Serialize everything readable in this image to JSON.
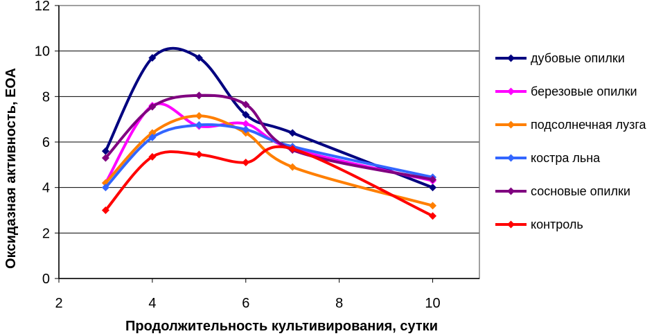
{
  "chart_data": {
    "type": "line",
    "title": "",
    "xlabel": "Продолжительность культивирования, сутки",
    "ylabel": "Оксидазная активность, ЕОА",
    "xlim": [
      2,
      11
    ],
    "ylim": [
      0,
      12
    ],
    "xticks": [
      "2",
      "4",
      "6",
      "8",
      "10"
    ],
    "yticks": [
      "0",
      "2",
      "4",
      "6",
      "8",
      "10",
      "12"
    ],
    "x": [
      3,
      4,
      5,
      6,
      7,
      10
    ],
    "grid": "horizontal",
    "legend_position": "right",
    "series": [
      {
        "name": "дубовые опилки",
        "color": "#000080",
        "values": [
          5.6,
          9.7,
          9.7,
          7.2,
          6.4,
          4.0
        ]
      },
      {
        "name": "березовые опилки",
        "color": "#ff00ff",
        "values": [
          4.2,
          7.6,
          6.7,
          6.8,
          5.7,
          4.3
        ]
      },
      {
        "name": "подсолнечная лузга",
        "color": "#ff7f00",
        "values": [
          4.2,
          6.4,
          7.15,
          6.4,
          4.9,
          3.2
        ]
      },
      {
        "name": "костра льна",
        "color": "#3366ff",
        "values": [
          4.0,
          6.2,
          6.75,
          6.55,
          5.8,
          4.45
        ]
      },
      {
        "name": "сосновые опилки",
        "color": "#800080",
        "values": [
          5.3,
          7.55,
          8.05,
          7.65,
          5.65,
          4.35
        ]
      },
      {
        "name": "контроль",
        "color": "#ff0000",
        "values": [
          3.0,
          5.35,
          5.45,
          5.1,
          5.7,
          2.75
        ]
      }
    ]
  }
}
